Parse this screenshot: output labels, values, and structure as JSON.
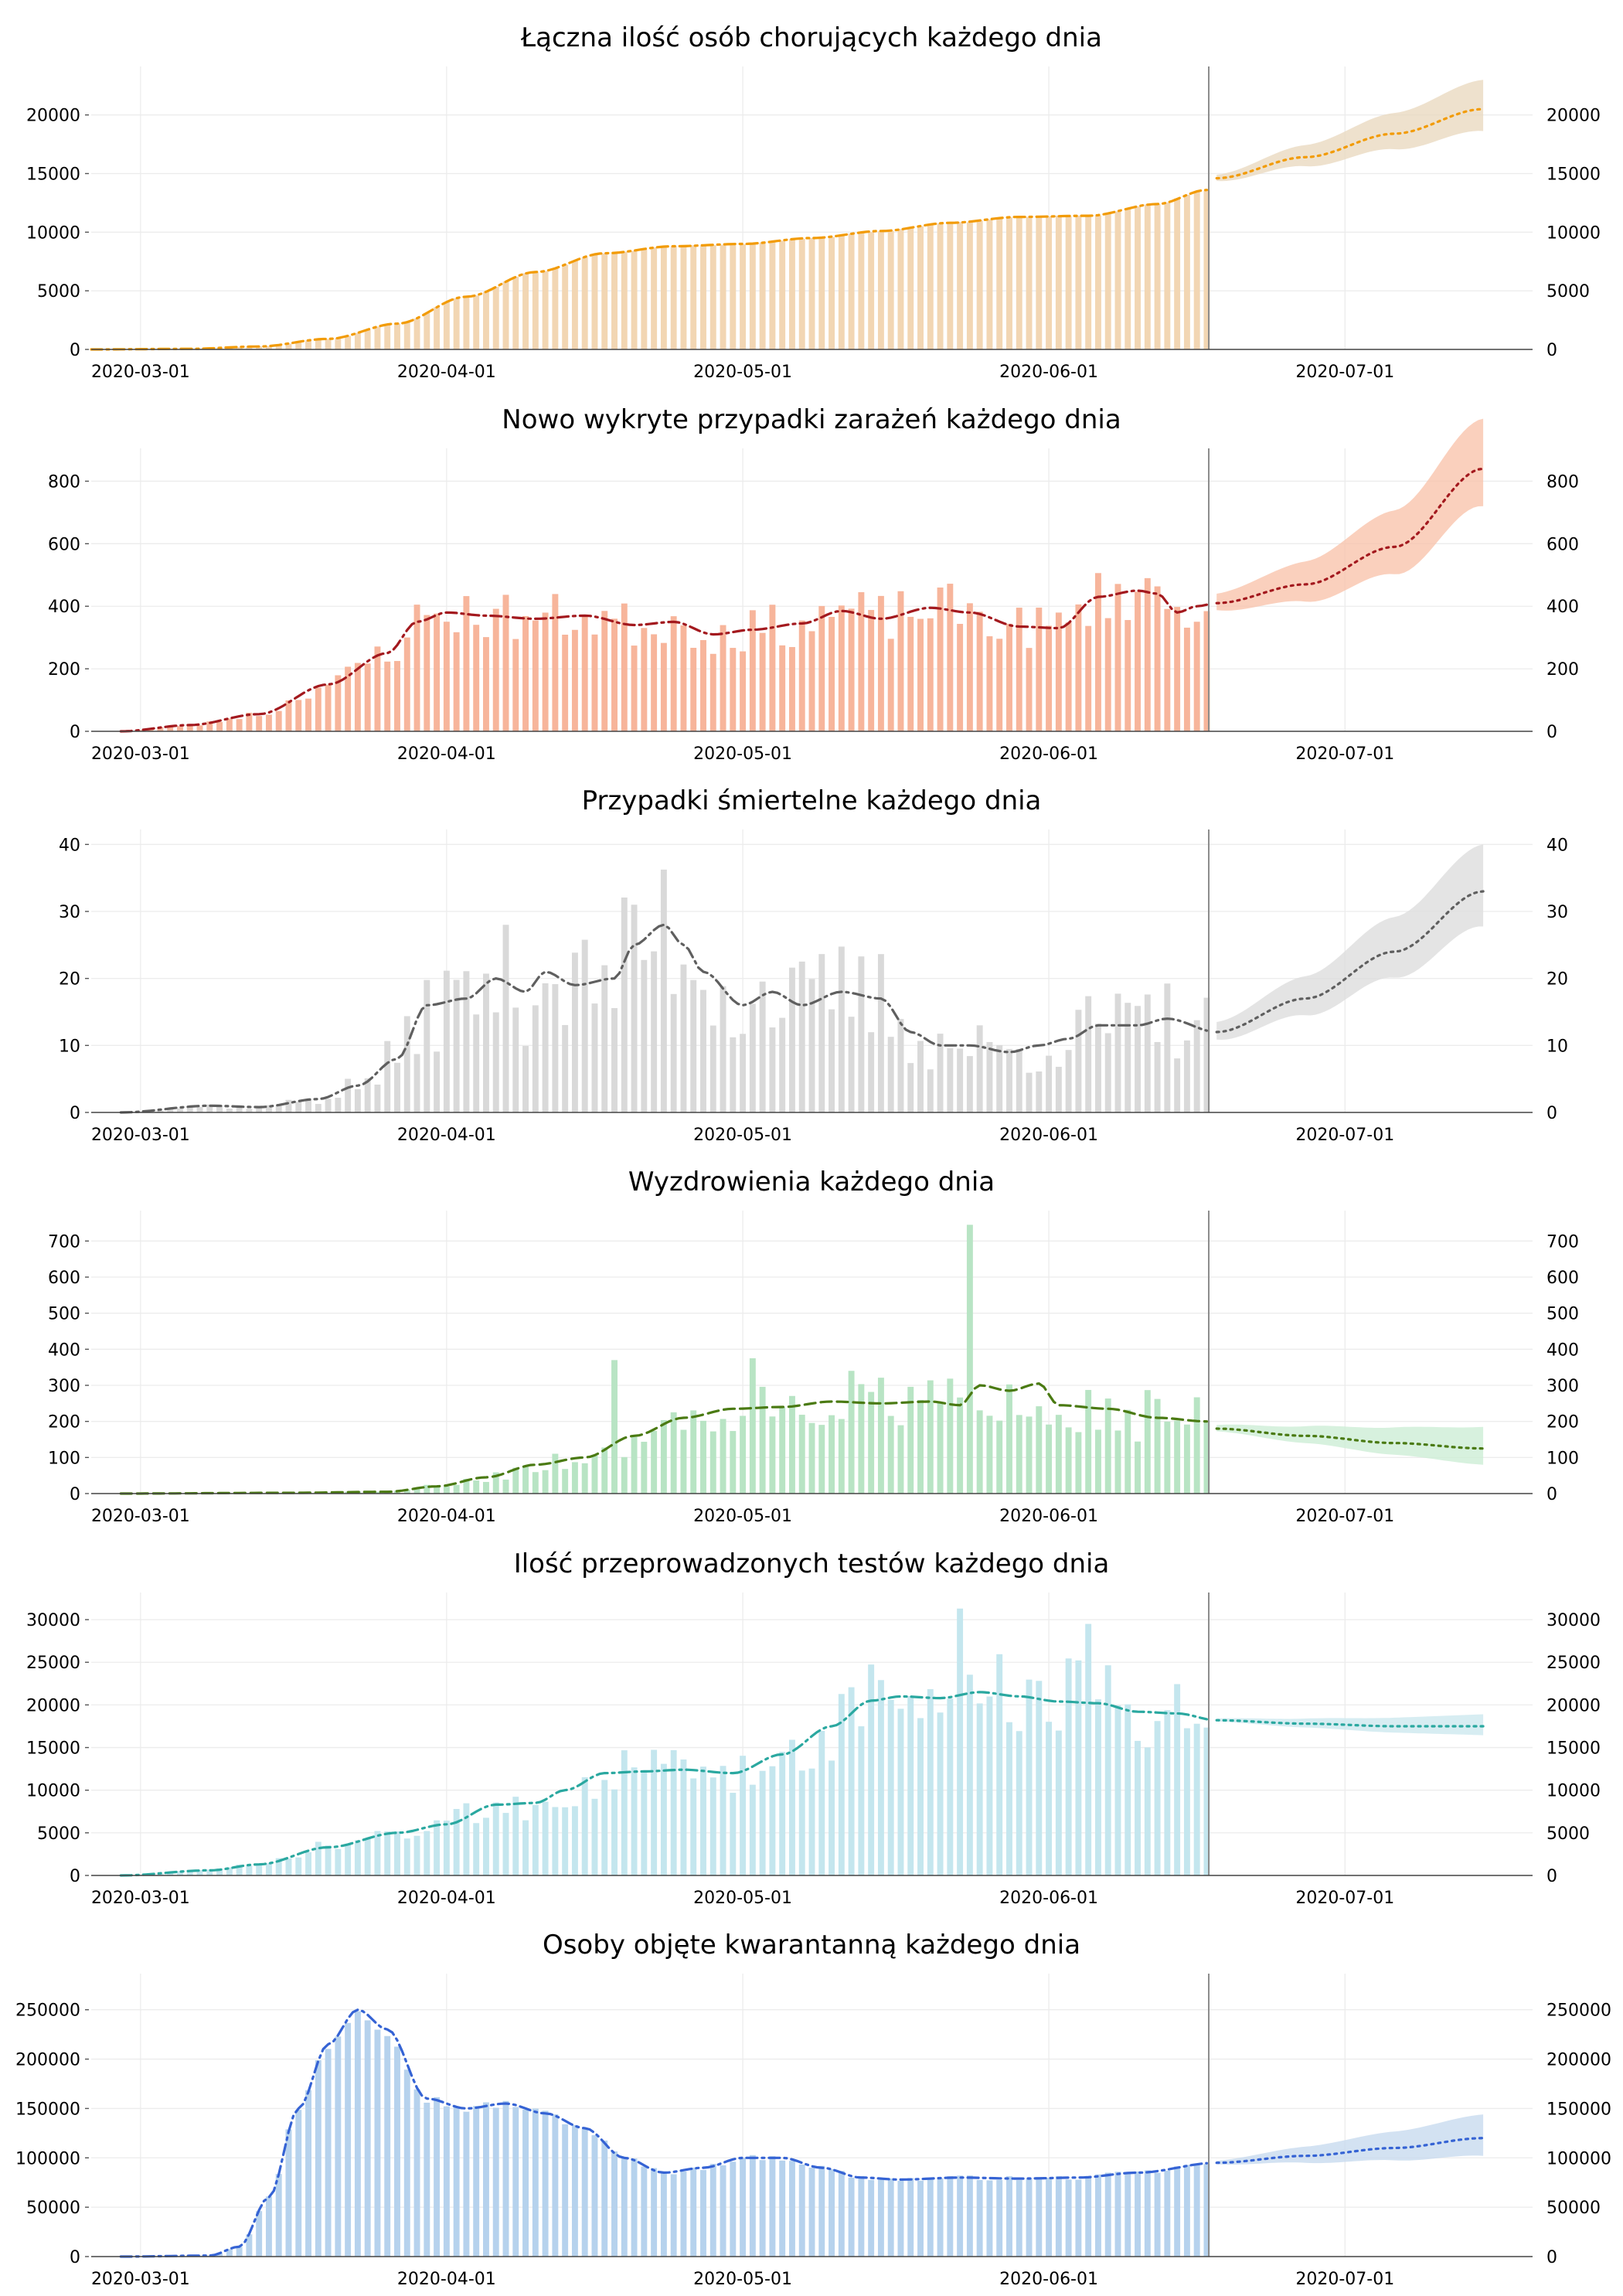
{
  "x_axis": {
    "start_date": "2020-02-25",
    "end_date": "2020-07-20",
    "tick_labels": [
      "2020-03-01",
      "2020-04-01",
      "2020-05-01",
      "2020-06-01",
      "2020-07-01"
    ],
    "last_observed_date": "2020-06-17",
    "forecast_end_date": "2020-07-15"
  },
  "chart_data": [
    {
      "type": "bar",
      "title": "Łączna ilość osób chorujących każdego dnia",
      "ylim": [
        0,
        24000
      ],
      "yticks": [
        0,
        5000,
        10000,
        15000,
        20000
      ],
      "ytick_labels": [
        "0",
        "5000",
        "10000",
        "15000",
        "20000"
      ],
      "bar_color": "#f2d6b3",
      "line_color": "#f29b05",
      "line_style": "dashdot",
      "band_color": "#ead9c1",
      "knots": [
        [
          0,
          0
        ],
        [
          10,
          50
        ],
        [
          17,
          250
        ],
        [
          24,
          900
        ],
        [
          31,
          2200
        ],
        [
          38,
          4500
        ],
        [
          45,
          6600
        ],
        [
          52,
          8200
        ],
        [
          59,
          8800
        ],
        [
          66,
          9000
        ],
        [
          73,
          9500
        ],
        [
          80,
          10100
        ],
        [
          87,
          10800
        ],
        [
          94,
          11300
        ],
        [
          101,
          11400
        ],
        [
          108,
          12400
        ],
        [
          113,
          13600
        ],
        [
          114,
          14600
        ]
      ],
      "noise": 0.005,
      "forecast_knots": [
        [
          114,
          14600
        ],
        [
          123,
          16400
        ],
        [
          132,
          18400
        ],
        [
          141,
          20500
        ]
      ],
      "band_width": [
        300,
        2500
      ],
      "seed": 11
    },
    {
      "type": "bar",
      "title": "Nowo wykryte przypadki zarażeń każdego dnia",
      "ylim": [
        0,
        900
      ],
      "yticks": [
        0,
        200,
        400,
        600,
        800
      ],
      "ytick_labels": [
        "0",
        "200",
        "400",
        "600",
        "800"
      ],
      "bar_color": "#f7b59b",
      "line_color": "#a3191e",
      "line_style": "dashdot",
      "band_color": "#f9c4ad",
      "knots": [
        [
          3,
          0
        ],
        [
          10,
          20
        ],
        [
          17,
          55
        ],
        [
          24,
          150
        ],
        [
          30,
          250
        ],
        [
          33,
          350
        ],
        [
          36,
          380
        ],
        [
          40,
          370
        ],
        [
          45,
          360
        ],
        [
          50,
          370
        ],
        [
          55,
          340
        ],
        [
          59,
          350
        ],
        [
          63,
          310
        ],
        [
          67,
          325
        ],
        [
          72,
          345
        ],
        [
          76,
          385
        ],
        [
          80,
          360
        ],
        [
          85,
          395
        ],
        [
          89,
          380
        ],
        [
          94,
          335
        ],
        [
          98,
          330
        ],
        [
          102,
          430
        ],
        [
          106,
          450
        ],
        [
          108,
          440
        ],
        [
          110,
          380
        ],
        [
          112,
          400
        ],
        [
          114,
          410
        ]
      ],
      "noise": 0.22,
      "forecast_knots": [
        [
          114,
          410
        ],
        [
          123,
          470
        ],
        [
          132,
          590
        ],
        [
          141,
          840
        ]
      ],
      "band_width": [
        30,
        160
      ],
      "seed": 23
    },
    {
      "type": "bar",
      "title": "Przypadki śmiertelne każdego dnia",
      "ylim": [
        0,
        42
      ],
      "yticks": [
        0,
        10,
        20,
        30,
        40
      ],
      "ytick_labels": [
        "0",
        "10",
        "20",
        "30",
        "40"
      ],
      "bar_color": "#d9d9d9",
      "line_color": "#5f5f5f",
      "line_style": "dashdot",
      "band_color": "#dddddd",
      "knots": [
        [
          3,
          0
        ],
        [
          12,
          1
        ],
        [
          17,
          0.8
        ],
        [
          23,
          2
        ],
        [
          27,
          4
        ],
        [
          31,
          8
        ],
        [
          34,
          16
        ],
        [
          38,
          17
        ],
        [
          41,
          20
        ],
        [
          44,
          18
        ],
        [
          46,
          21
        ],
        [
          49,
          19
        ],
        [
          53,
          20
        ],
        [
          55,
          25
        ],
        [
          58,
          28
        ],
        [
          60,
          25
        ],
        [
          62,
          21
        ],
        [
          66,
          16
        ],
        [
          69,
          18
        ],
        [
          72,
          16
        ],
        [
          76,
          18
        ],
        [
          80,
          17
        ],
        [
          83,
          12
        ],
        [
          86,
          10
        ],
        [
          89,
          10
        ],
        [
          93,
          9
        ],
        [
          96,
          10
        ],
        [
          99,
          11
        ],
        [
          102,
          13
        ],
        [
          106,
          13
        ],
        [
          109,
          14
        ],
        [
          114,
          12
        ]
      ],
      "noise": 0.45,
      "forecast_knots": [
        [
          114,
          12
        ],
        [
          123,
          17
        ],
        [
          132,
          24
        ],
        [
          141,
          33
        ]
      ],
      "band_width": [
        1.5,
        7
      ],
      "seed": 37
    },
    {
      "type": "bar",
      "title": "Wyzdrowienia każdego dnia",
      "ylim": [
        0,
        780
      ],
      "yticks": [
        0,
        100,
        200,
        300,
        400,
        500,
        600,
        700
      ],
      "ytick_labels": [
        "0",
        "100",
        "200",
        "300",
        "400",
        "500",
        "600",
        "700"
      ],
      "bar_color": "#b8e4c4",
      "line_color": "#4a7a12",
      "line_style": "dashed",
      "band_color": "#cdeed6",
      "knots": [
        [
          3,
          0
        ],
        [
          20,
          2
        ],
        [
          30,
          5
        ],
        [
          35,
          20
        ],
        [
          40,
          45
        ],
        [
          45,
          80
        ],
        [
          50,
          100
        ],
        [
          55,
          160
        ],
        [
          60,
          210
        ],
        [
          65,
          235
        ],
        [
          70,
          240
        ],
        [
          75,
          255
        ],
        [
          80,
          250
        ],
        [
          85,
          255
        ],
        [
          88,
          245
        ],
        [
          90,
          300
        ],
        [
          93,
          285
        ],
        [
          96,
          305
        ],
        [
          98,
          245
        ],
        [
          103,
          235
        ],
        [
          108,
          210
        ],
        [
          113,
          200
        ],
        [
          114,
          200
        ]
      ],
      "noise": 0.35,
      "spikes": [
        [
          89,
          745
        ],
        [
          53,
          370
        ],
        [
          67,
          375
        ]
      ],
      "forecast_knots": [
        [
          114,
          180
        ],
        [
          123,
          160
        ],
        [
          132,
          140
        ],
        [
          141,
          125
        ]
      ],
      "band_width": [
        10,
        60
      ],
      "seed": 51
    },
    {
      "type": "bar",
      "title": "Ilość przeprowadzonych testów każdego dnia",
      "ylim": [
        0,
        33000
      ],
      "yticks": [
        0,
        5000,
        10000,
        15000,
        20000,
        25000,
        30000
      ],
      "ytick_labels": [
        "0",
        "5000",
        "10000",
        "15000",
        "20000",
        "25000",
        "30000"
      ],
      "bar_color": "#c4e6ee",
      "line_color": "#2aa8a0",
      "line_style": "dashdot",
      "band_color": "#cde8ef",
      "knots": [
        [
          3,
          0
        ],
        [
          12,
          600
        ],
        [
          17,
          1300
        ],
        [
          24,
          3300
        ],
        [
          31,
          5000
        ],
        [
          36,
          6000
        ],
        [
          41,
          8300
        ],
        [
          45,
          8500
        ],
        [
          48,
          10000
        ],
        [
          52,
          12000
        ],
        [
          56,
          12200
        ],
        [
          60,
          12400
        ],
        [
          65,
          12000
        ],
        [
          70,
          14200
        ],
        [
          75,
          17500
        ],
        [
          79,
          20500
        ],
        [
          82,
          21000
        ],
        [
          86,
          20800
        ],
        [
          90,
          21500
        ],
        [
          94,
          21000
        ],
        [
          98,
          20400
        ],
        [
          102,
          20200
        ],
        [
          106,
          19200
        ],
        [
          110,
          19000
        ],
        [
          114,
          18200
        ]
      ],
      "noise": 0.25,
      "spikes": [
        [
          88,
          31300
        ],
        [
          101,
          29500
        ]
      ],
      "forecast_knots": [
        [
          114,
          18200
        ],
        [
          123,
          17800
        ],
        [
          132,
          17500
        ],
        [
          141,
          17500
        ]
      ],
      "band_width": [
        200,
        1400
      ],
      "seed": 73
    },
    {
      "type": "bar",
      "title": "Osoby objęte kwarantanną każdego dnia",
      "ylim": [
        0,
        285000
      ],
      "yticks": [
        0,
        50000,
        100000,
        150000,
        200000,
        250000
      ],
      "ytick_labels": [
        "0",
        "50000",
        "100000",
        "150000",
        "200000",
        "250000"
      ],
      "bar_color": "#b6d2ed",
      "line_color": "#3563d4",
      "line_style": "dashdot",
      "band_color": "#c8dbef",
      "knots": [
        [
          3,
          0
        ],
        [
          12,
          1000
        ],
        [
          15,
          10000
        ],
        [
          18,
          60000
        ],
        [
          21,
          150000
        ],
        [
          24,
          215000
        ],
        [
          27,
          250000
        ],
        [
          30,
          230000
        ],
        [
          34,
          160000
        ],
        [
          38,
          150000
        ],
        [
          42,
          155000
        ],
        [
          46,
          145000
        ],
        [
          50,
          130000
        ],
        [
          54,
          100000
        ],
        [
          58,
          85000
        ],
        [
          62,
          90000
        ],
        [
          66,
          100000
        ],
        [
          70,
          100000
        ],
        [
          74,
          90000
        ],
        [
          78,
          80000
        ],
        [
          82,
          78000
        ],
        [
          88,
          80000
        ],
        [
          94,
          79000
        ],
        [
          100,
          80000
        ],
        [
          106,
          85000
        ],
        [
          114,
          95000
        ]
      ],
      "noise": 0.03,
      "forecast_knots": [
        [
          114,
          95000
        ],
        [
          123,
          102000
        ],
        [
          132,
          110000
        ],
        [
          141,
          120000
        ]
      ],
      "band_width": [
        2000,
        24000
      ],
      "seed": 97
    }
  ]
}
